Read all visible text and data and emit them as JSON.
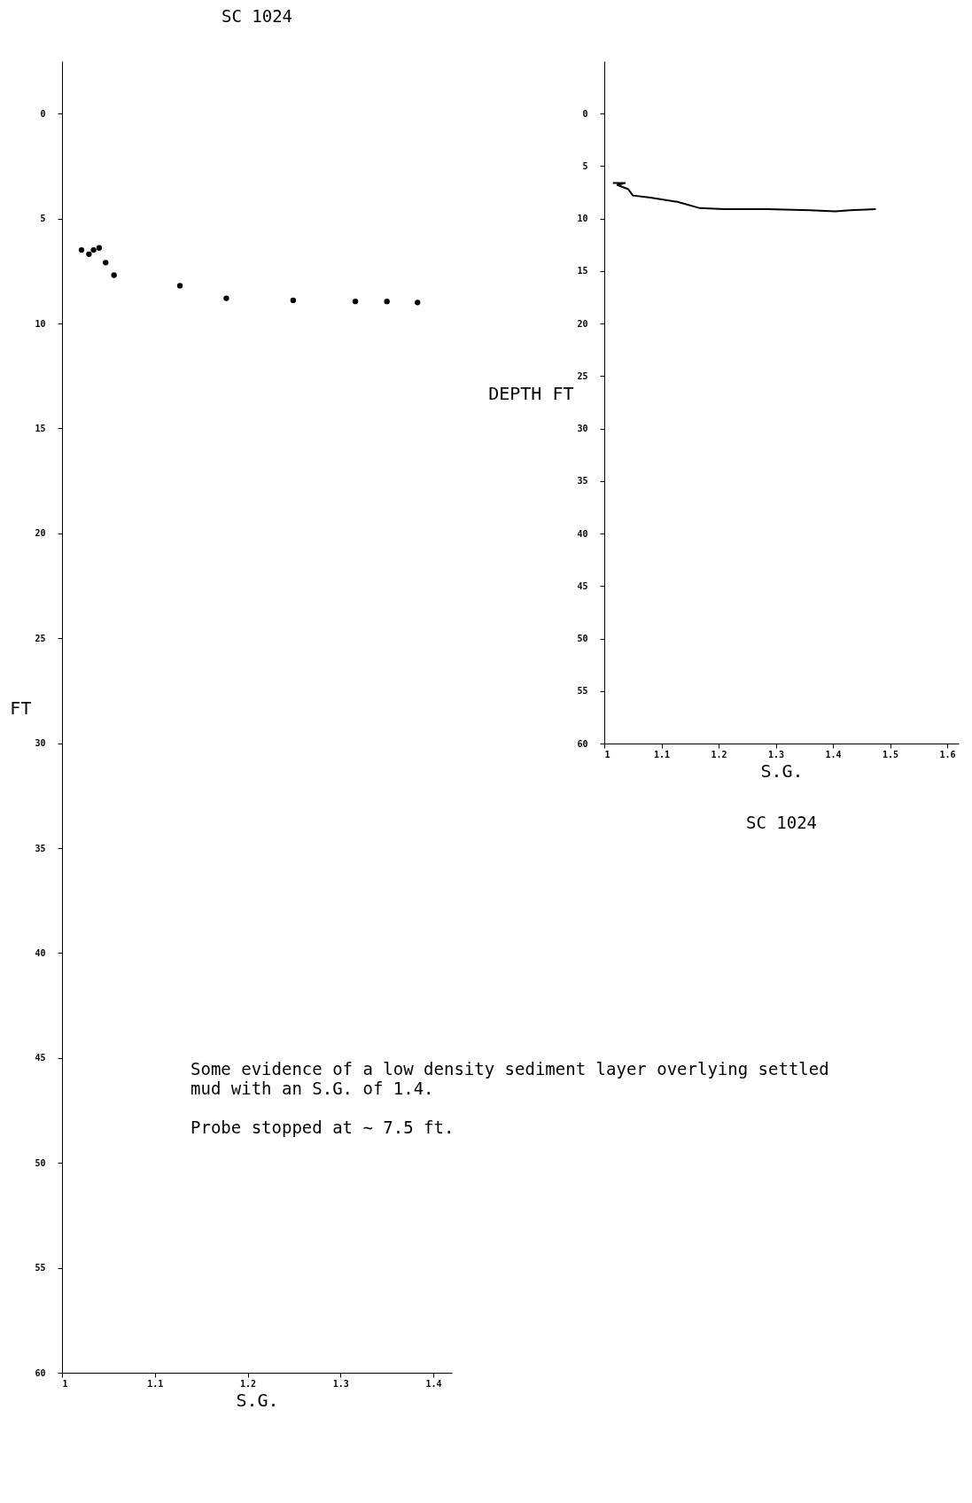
{
  "chart_data": [
    {
      "type": "scatter",
      "title": "SC 1024",
      "xlabel": "S.G.",
      "ylabel": "FT",
      "marker": "circle",
      "color": "#000000",
      "x": [
        1.021,
        1.029,
        1.034,
        1.04,
        1.047,
        1.056,
        1.127,
        1.177,
        1.249,
        1.316,
        1.35,
        1.383
      ],
      "values": [
        6.5,
        6.7,
        6.5,
        6.4,
        7.1,
        7.7,
        8.2,
        8.8,
        8.9,
        8.95,
        8.95,
        9.0
      ],
      "xlim": [
        1,
        1.42
      ],
      "xticks": [
        1,
        1.1,
        1.2,
        1.3,
        1.4
      ],
      "ylim": [
        60,
        -2.5
      ],
      "yticks": [
        0,
        5,
        10,
        15,
        20,
        25,
        30,
        35,
        40,
        45,
        50,
        55,
        60
      ],
      "annotations": [
        "Some evidence of a low density sediment layer overlying settled mud with an S.G. of   1.4.",
        "Probe stopped at ∼ 7.5 ft."
      ]
    },
    {
      "type": "line",
      "title": "SC 1024",
      "xlabel": "S.G.",
      "ylabel": "DEPTH FT",
      "color": "#000000",
      "x": [
        1.015,
        1.036,
        1.023,
        1.042,
        1.05,
        1.081,
        1.128,
        1.167,
        1.21,
        1.287,
        1.36,
        1.404,
        1.43,
        1.475
      ],
      "values": [
        6.6,
        6.6,
        6.8,
        7.2,
        7.8,
        8.0,
        8.4,
        9.0,
        9.1,
        9.1,
        9.2,
        9.3,
        9.2,
        9.1
      ],
      "xlim": [
        1,
        1.62
      ],
      "xticks": [
        1,
        1.1,
        1.2,
        1.3,
        1.4,
        1.5,
        1.6
      ],
      "ylim": [
        60,
        -5
      ],
      "yticks": [
        0,
        5,
        10,
        15,
        20,
        25,
        30,
        35,
        40,
        45,
        50,
        55,
        60
      ]
    }
  ]
}
